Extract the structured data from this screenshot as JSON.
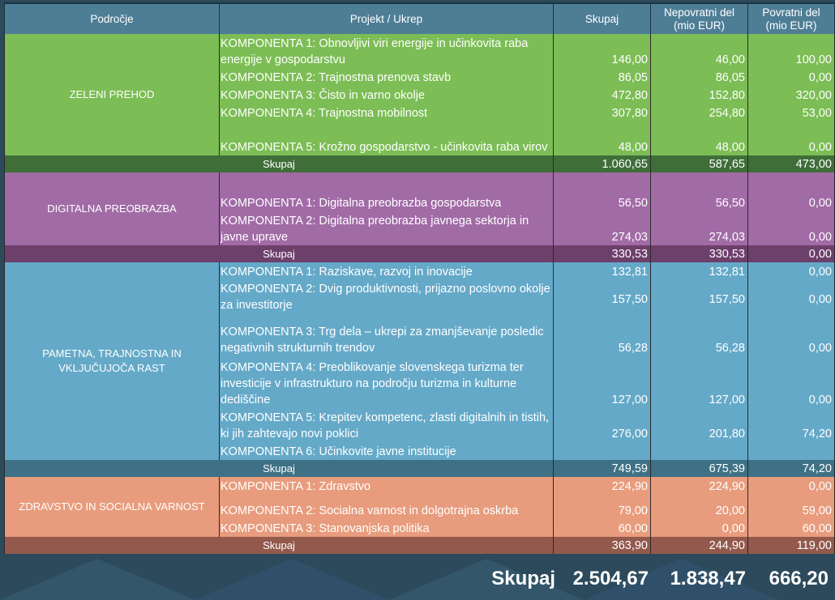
{
  "headers": {
    "area": "Področje",
    "project": "Projekt / Ukrep",
    "total": "Skupaj",
    "grant": "Nepovratni del (mio EUR)",
    "loan": "Povratni del (mio EUR)"
  },
  "sections": [
    {
      "area": "ZELENI PREHOD",
      "rows": [
        {
          "project": "KOMPONENTA 1: Obnovljivi viri energije in učinkovita raba energije v gospodarstvu",
          "total": "146,00",
          "grant": "46,00",
          "loan": "100,00"
        },
        {
          "project": "KOMPONENTA 2: Trajnostna prenova stavb",
          "total": "86,05",
          "grant": "86,05",
          "loan": "0,00"
        },
        {
          "project": "KOMPONENTA 3: Čisto in varno okolje",
          "total": "472,80",
          "grant": "152,80",
          "loan": "320,00"
        },
        {
          "project": "KOMPONENTA 4: Trajnostna mobilnost",
          "total": "307,80",
          "grant": "254,80",
          "loan": "53,00"
        },
        {
          "project": "KOMPONENTA 5: Krožno gospodarstvo - učinkovita raba virov",
          "total": "48,00",
          "grant": "48,00",
          "loan": "0,00"
        }
      ],
      "subtotal": {
        "label": "Skupaj",
        "total": "1.060,65",
        "grant": "587,65",
        "loan": "473,00"
      }
    },
    {
      "area": "DIGITALNA PREOBRAZBA",
      "rows": [
        {
          "project": "KOMPONENTA 1: Digitalna preobrazba gospodarstva",
          "total": "56,50",
          "grant": "56,50",
          "loan": "0,00"
        },
        {
          "project": "KOMPONENTA 2: Digitalna preobrazba javnega sektorja in javne uprave",
          "total": "274,03",
          "grant": "274,03",
          "loan": "0,00"
        }
      ],
      "subtotal": {
        "label": "Skupaj",
        "total": "330,53",
        "grant": "330,53",
        "loan": "0,00"
      }
    },
    {
      "area": "PAMETNA, TRAJNOSTNA IN VKLJUČUJOČA RAST",
      "rows": [
        {
          "project": "KOMPONENTA 1: Raziskave, razvoj in inovacije",
          "total": "132,81",
          "grant": "132,81",
          "loan": "0,00"
        },
        {
          "project": "KOMPONENTA 2: Dvig produktivnosti, prijazno poslovno okolje za investitorje",
          "total": "157,50",
          "grant": "157,50",
          "loan": "0,00"
        },
        {
          "project": "KOMPONENTA 3: Trg dela – ukrepi za zmanjševanje posledic negativnih strukturnih trendov",
          "total": "56,28",
          "grant": "56,28",
          "loan": "0,00"
        },
        {
          "project": "KOMPONENTA 4: Preoblikovanje slovenskega turizma ter investicije v infrastrukturo na področju turizma in kulturne dediščine",
          "total": "127,00",
          "grant": "127,00",
          "loan": "0,00"
        },
        {
          "project": "KOMPONENTA 5: Krepitev kompetenc, zlasti digitalnih in tistih, ki jih zahtevajo novi poklici",
          "total": "276,00",
          "grant": "201,80",
          "loan": "74,20"
        },
        {
          "project": "KOMPONENTA 6: Učinkovite javne institucije",
          "total": "",
          "grant": "",
          "loan": ""
        }
      ],
      "subtotal": {
        "label": "Skupaj",
        "total": "749,59",
        "grant": "675,39",
        "loan": "74,20"
      }
    },
    {
      "area": "ZDRAVSTVO IN SOCIALNA VARNOST",
      "rows": [
        {
          "project": "KOMPONENTA 1: Zdravstvo",
          "total": "224,90",
          "grant": "224,90",
          "loan": "0,00"
        },
        {
          "project": "KOMPONENTA 2: Socialna varnost in dolgotrajna oskrba",
          "total": "79,00",
          "grant": "20,00",
          "loan": "59,00"
        },
        {
          "project": "KOMPONENTA 3: Stanovanjska politika",
          "total": "60,00",
          "grant": "0,00",
          "loan": "60,00"
        }
      ],
      "subtotal": {
        "label": "Skupaj",
        "total": "363,90",
        "grant": "244,90",
        "loan": "119,00"
      }
    }
  ],
  "grand_total": {
    "label": "Skupaj",
    "total": "2.504,67",
    "grant": "1.838,47",
    "loan": "666,20"
  }
}
